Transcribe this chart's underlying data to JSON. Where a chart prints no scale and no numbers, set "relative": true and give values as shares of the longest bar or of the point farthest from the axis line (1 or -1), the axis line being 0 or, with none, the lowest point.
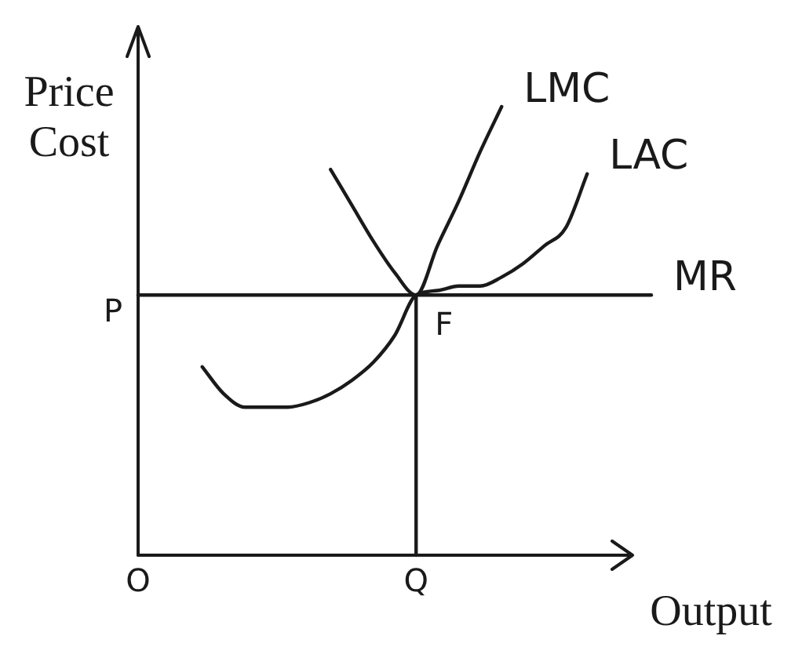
{
  "chart_data": {
    "type": "line",
    "relative": true,
    "xlabel": "Output",
    "ylabel": "Price Cost",
    "categories": [
      "O",
      null,
      null,
      null,
      null,
      null,
      null,
      null,
      null,
      null,
      null,
      null,
      null,
      "Q",
      null,
      null,
      null,
      null,
      null,
      null,
      null,
      null,
      null,
      null,
      null
    ],
    "series": [
      {
        "name": "LMC",
        "color": "#1a1a1a",
        "values": [
          null,
          null,
          null,
          null,
          null,
          null,
          null,
          null,
          null,
          0.86,
          0.78,
          0.7,
          0.63,
          0.58,
          0.69,
          0.79,
          0.9,
          1,
          null,
          null,
          null,
          null,
          null,
          null,
          null
        ]
      },
      {
        "name": "LAC",
        "color": "#1a1a1a",
        "values": [
          null,
          null,
          null,
          0.42,
          0.36,
          0.33,
          0.33,
          0.33,
          0.34,
          0.36,
          0.39,
          0.43,
          0.49,
          0.58,
          0.59,
          0.6,
          0.6,
          0.62,
          0.65,
          0.69,
          0.73,
          0.85,
          null,
          null,
          null
        ]
      },
      {
        "name": "MR",
        "color": "#1a1a1a",
        "values": [
          0.58,
          0.58,
          0.58,
          0.58,
          0.58,
          0.58,
          0.58,
          0.58,
          0.58,
          0.58,
          0.58,
          0.58,
          0.58,
          0.58,
          0.58,
          0.58,
          0.58,
          0.58,
          0.58,
          0.58,
          0.58,
          0.58,
          0.58,
          0.58,
          0.58
        ]
      },
      {
        "color": "#1a1a1a",
        "x": [
          "Q",
          "Q"
        ],
        "values": [
          0.58,
          0
        ]
      }
    ],
    "annotations": [
      "P",
      {
        "text": "F",
        "x": "Q",
        "y": 0.58
      }
    ]
  }
}
